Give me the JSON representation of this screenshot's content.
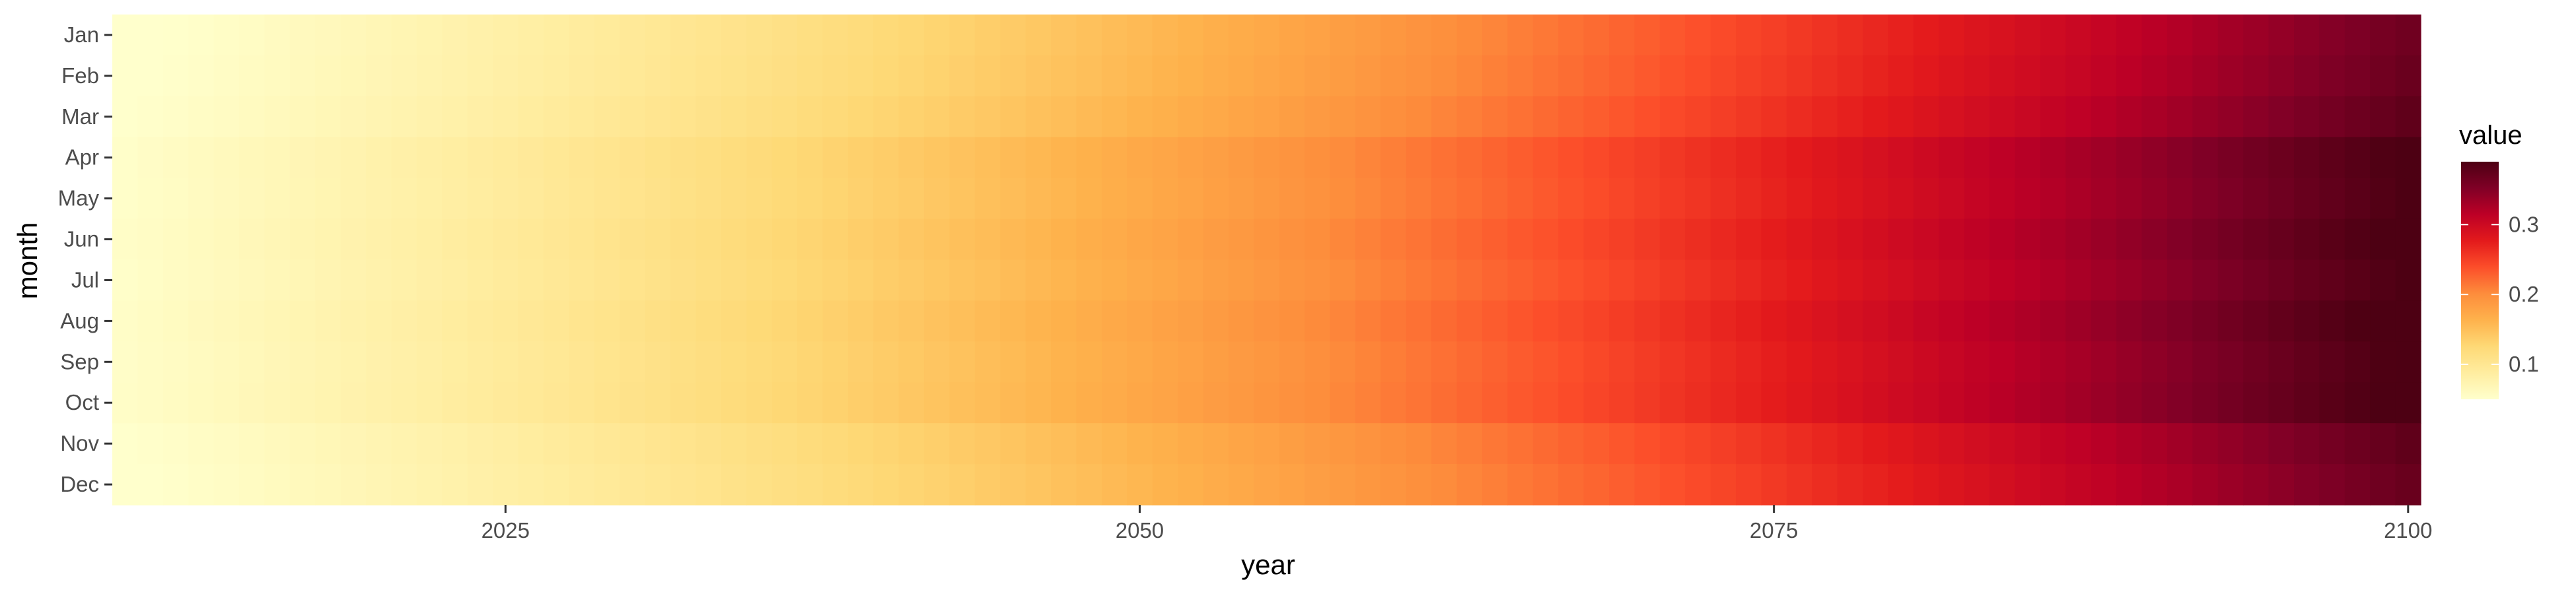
{
  "chart_data": {
    "type": "heatmap",
    "title": "",
    "xlabel": "year",
    "ylabel": "month",
    "x_range": [
      2010,
      2100
    ],
    "x_ticks": [
      "2025",
      "2050",
      "2075",
      "2100"
    ],
    "y_categories": [
      "Jan",
      "Feb",
      "Mar",
      "Apr",
      "May",
      "Jun",
      "Jul",
      "Aug",
      "Sep",
      "Oct",
      "Nov",
      "Dec"
    ],
    "value_range": [
      0.05,
      0.39
    ],
    "month_offsets": [
      -0.012,
      -0.009,
      -0.003,
      0.01,
      0.008,
      0.013,
      0.009,
      0.015,
      0.011,
      0.013,
      -0.003,
      -0.008
    ],
    "trend": "value increases with year: ~0.05 in 2010, ~0.12 in 2040, ~0.19 in 2060, ~0.28 in 2080, ~0.38 in 2100",
    "colorscale": "YlOrRd",
    "colorscale_stops": [
      "#ffffcc",
      "#ffeda0",
      "#fed976",
      "#feb24c",
      "#fd8d3c",
      "#fc4e2a",
      "#e31a1c",
      "#bd0026",
      "#800026",
      "#4d0013"
    ],
    "legend": {
      "title": "value",
      "ticks": [
        "0.1",
        "0.2",
        "0.3"
      ],
      "position": "right"
    },
    "grid": false
  }
}
